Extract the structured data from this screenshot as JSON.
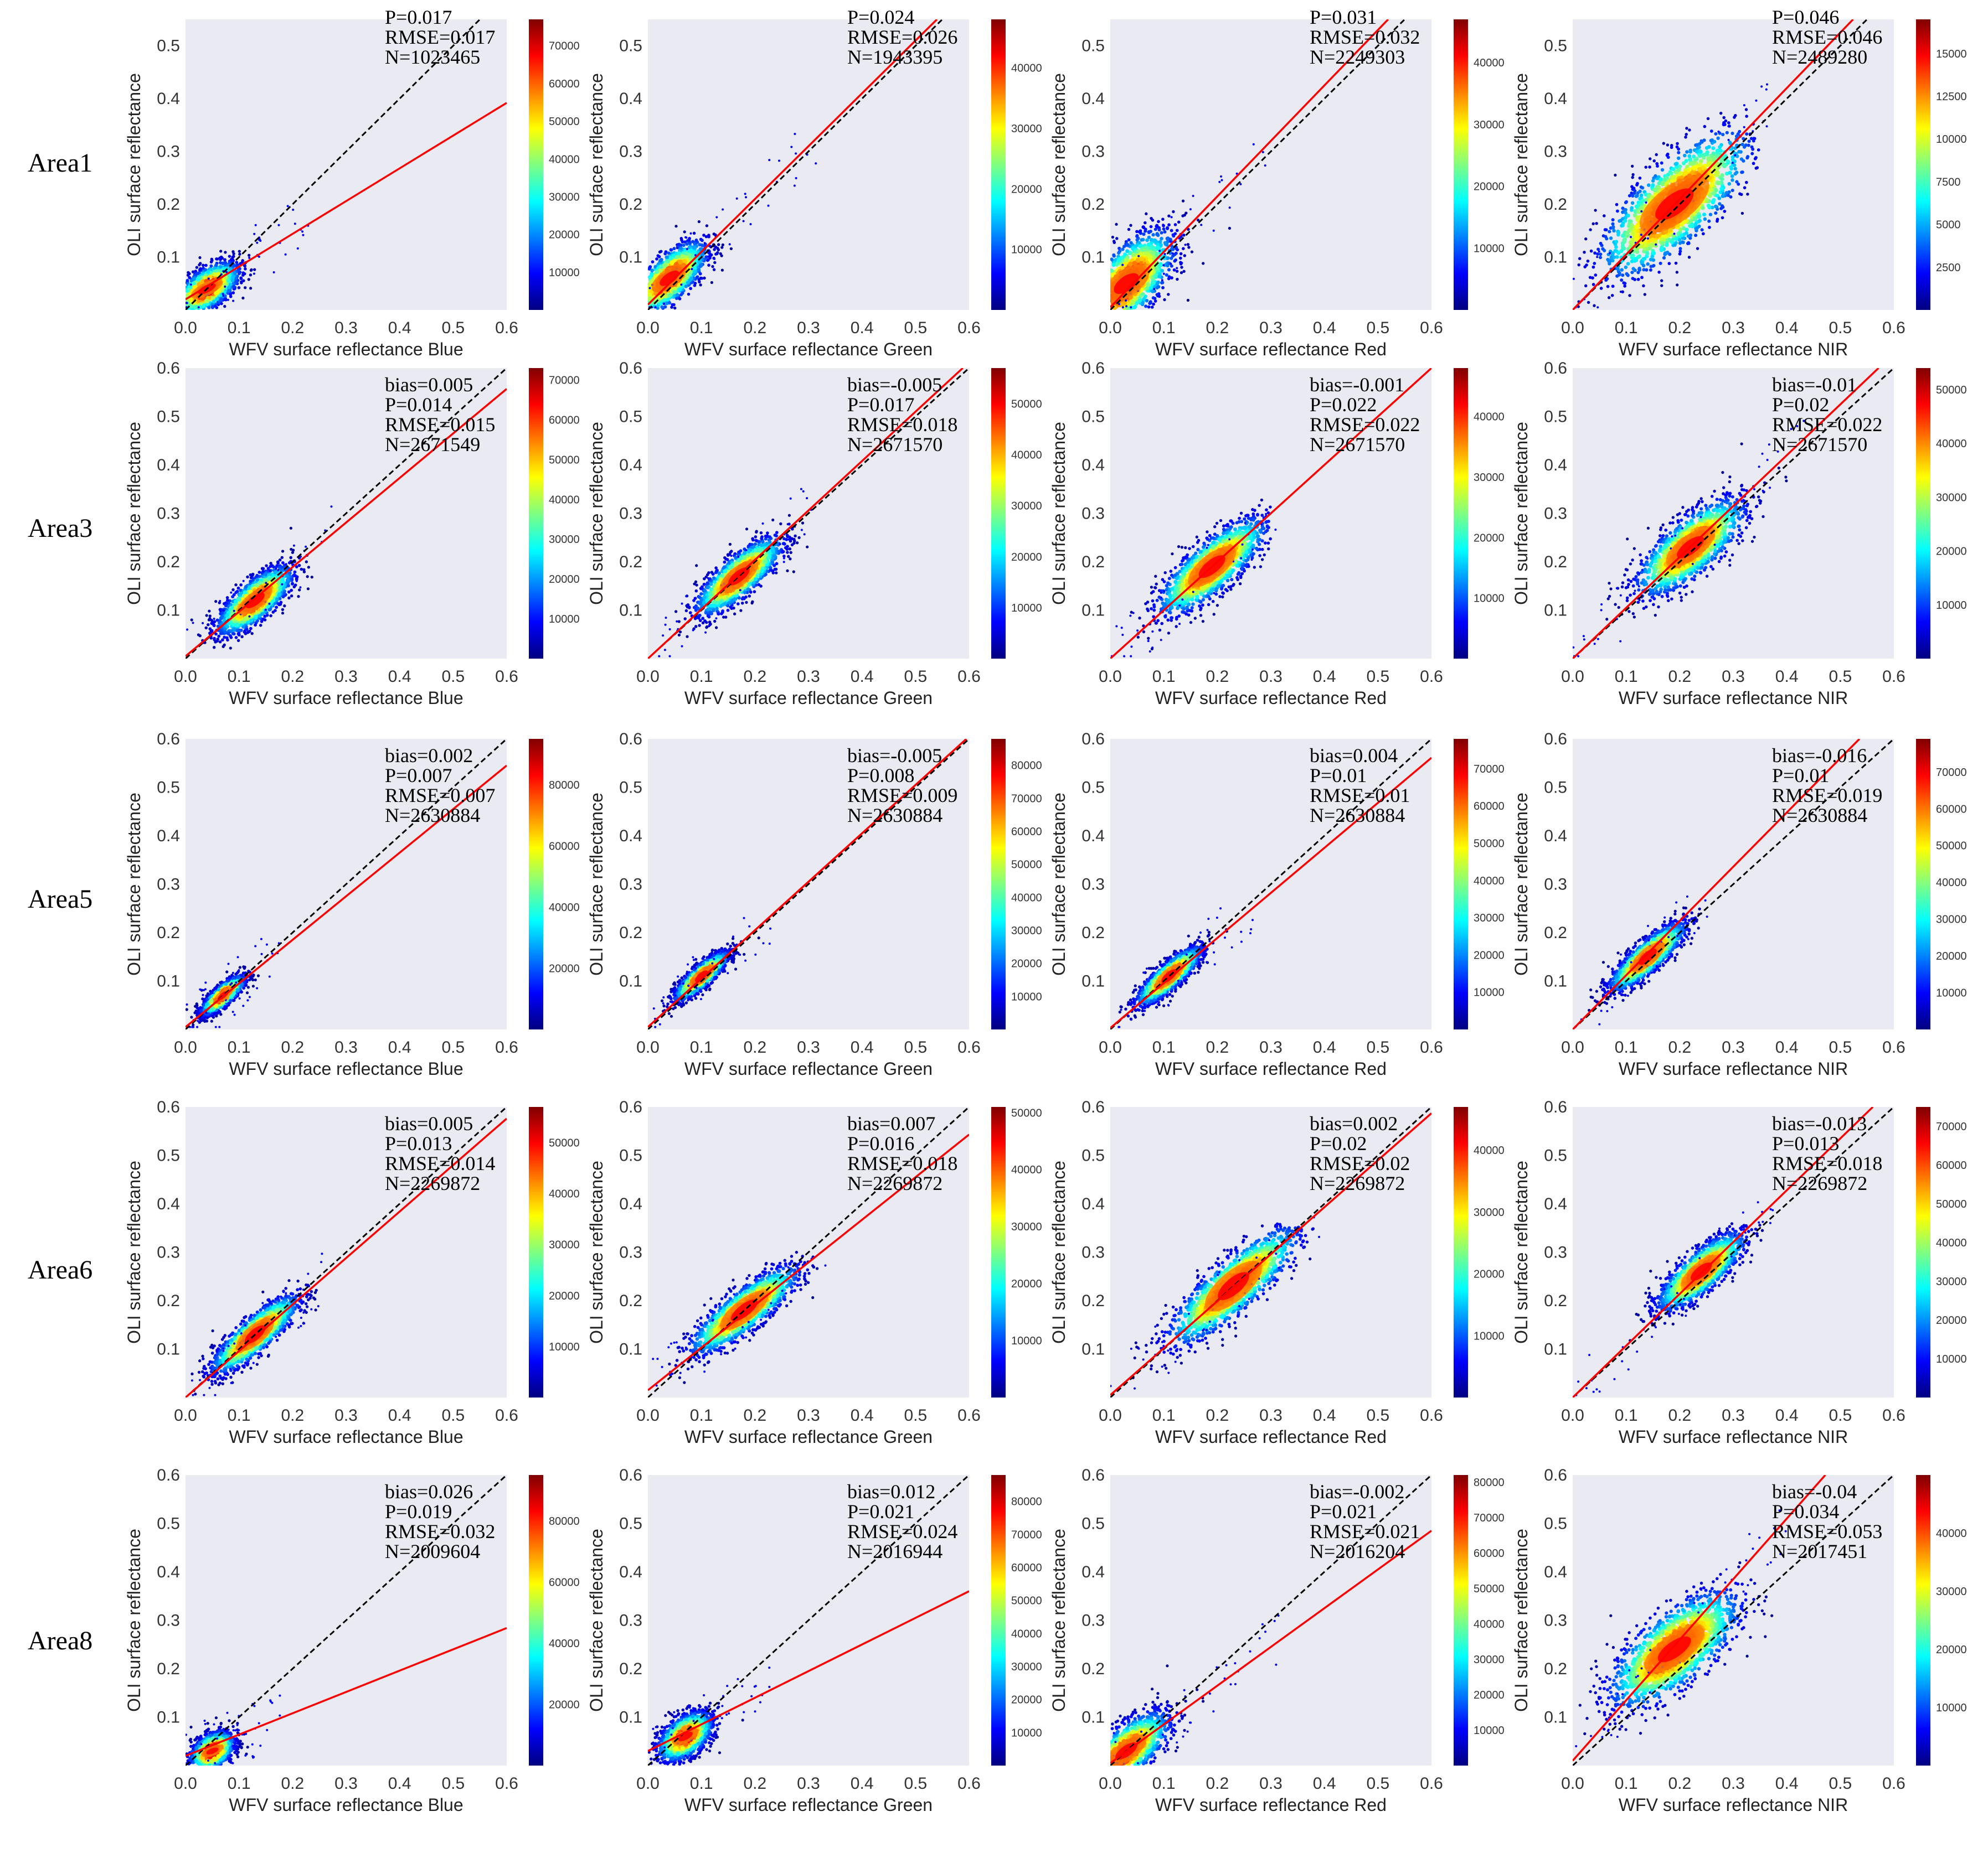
{
  "figure": {
    "y_axis_label": "OLI surface reflectance",
    "x_axis_label_prefix": "WFV surface reflectance",
    "bands": [
      "Blue",
      "Green",
      "Red",
      "NIR"
    ],
    "stat_prefixes": {
      "bias": "bias=",
      "p": "P=",
      "rmse": "RMSE=",
      "n": "N="
    },
    "colormap": [
      "#00007f",
      "#0000ff",
      "#0080ff",
      "#00ffff",
      "#80ff80",
      "#ffff00",
      "#ff8000",
      "#ff0000",
      "#7f0000"
    ],
    "colors": {
      "panel_bg": "#eaeaf2",
      "fit_line": "#ff0000",
      "one_to_one": "#000000"
    },
    "row_labels": [
      "Area1",
      "Area3",
      "Area5",
      "Area6",
      "Area8"
    ]
  },
  "chart_data": [
    {
      "type": "scatter",
      "row_label": "Area1",
      "band": "Blue",
      "bias": null,
      "p": "0.017",
      "rmse": "0.017",
      "n": "1023465",
      "xlim": [
        0,
        0.6
      ],
      "ylim": [
        0,
        0.55
      ],
      "xticks": [
        0.0,
        0.1,
        0.2,
        0.3,
        0.4,
        0.5,
        0.6
      ],
      "yticks": [
        0.1,
        0.2,
        0.3,
        0.4,
        0.5
      ],
      "fit": {
        "slope": 0.62,
        "intercept": 0.02
      },
      "density": {
        "cx": 0.04,
        "cy": 0.04,
        "sx": 0.03,
        "sy": 0.025,
        "rho": 0.6
      },
      "extent": {
        "xmax": 0.22,
        "ymax": 0.2
      },
      "colorbar": {
        "ticks": [
          10000,
          20000,
          30000,
          40000,
          50000,
          60000,
          70000
        ],
        "max": 77000
      }
    },
    {
      "type": "scatter",
      "row_label": "Area1",
      "band": "Green",
      "bias": null,
      "p": "0.024",
      "rmse": "0.026",
      "n": "1943395",
      "xlim": [
        0,
        0.6
      ],
      "ylim": [
        0,
        0.55
      ],
      "xticks": [
        0.0,
        0.1,
        0.2,
        0.3,
        0.4,
        0.5,
        0.6
      ],
      "yticks": [
        0.1,
        0.2,
        0.3,
        0.4,
        0.5
      ],
      "fit": {
        "slope": 1.0,
        "intercept": 0.01
      },
      "density": {
        "cx": 0.04,
        "cy": 0.06,
        "sx": 0.035,
        "sy": 0.035,
        "rho": 0.7
      },
      "extent": {
        "xmax": 0.3,
        "ymax": 0.3
      },
      "colorbar": {
        "ticks": [
          10000,
          20000,
          30000,
          40000
        ],
        "max": 48000
      }
    },
    {
      "type": "scatter",
      "row_label": "Area1",
      "band": "Red",
      "bias": null,
      "p": "0.031",
      "rmse": "0.032",
      "n": "2249303",
      "xlim": [
        0,
        0.6
      ],
      "ylim": [
        0,
        0.55
      ],
      "xticks": [
        0.0,
        0.1,
        0.2,
        0.3,
        0.4,
        0.5,
        0.6
      ],
      "yticks": [
        0.1,
        0.2,
        0.3,
        0.4,
        0.5
      ],
      "fit": {
        "slope": 1.05,
        "intercept": 0.005
      },
      "density": {
        "cx": 0.03,
        "cy": 0.05,
        "sx": 0.045,
        "sy": 0.05,
        "rho": 0.65
      },
      "extent": {
        "xmax": 0.3,
        "ymax": 0.33
      },
      "colorbar": {
        "ticks": [
          10000,
          20000,
          30000,
          40000
        ],
        "max": 47000
      }
    },
    {
      "type": "scatter",
      "row_label": "Area1",
      "band": "NIR",
      "bias": null,
      "p": "0.046",
      "rmse": "0.046",
      "n": "2489280",
      "xlim": [
        0,
        0.6
      ],
      "ylim": [
        0,
        0.55
      ],
      "xticks": [
        0.0,
        0.1,
        0.2,
        0.3,
        0.4,
        0.5,
        0.6
      ],
      "yticks": [
        0.1,
        0.2,
        0.3,
        0.4,
        0.5
      ],
      "fit": {
        "slope": 1.05,
        "intercept": 0.0
      },
      "density": {
        "cx": 0.19,
        "cy": 0.2,
        "sx": 0.07,
        "sy": 0.07,
        "rho": 0.75
      },
      "extent": {
        "xmax": 0.35,
        "ymax": 0.38
      },
      "colorbar": {
        "ticks": [
          2500,
          5000,
          7500,
          10000,
          12500,
          15000
        ],
        "max": 17000
      }
    },
    {
      "type": "scatter",
      "row_label": "Area3",
      "band": "Blue",
      "bias": "0.005",
      "p": "0.014",
      "rmse": "0.015",
      "n": "2671549",
      "xlim": [
        0,
        0.6
      ],
      "ylim": [
        0,
        0.6
      ],
      "xticks": [
        0.0,
        0.1,
        0.2,
        0.3,
        0.4,
        0.5,
        0.6
      ],
      "yticks": [
        0.1,
        0.2,
        0.3,
        0.4,
        0.5,
        0.6
      ],
      "fit": {
        "slope": 0.92,
        "intercept": 0.005
      },
      "density": {
        "cx": 0.13,
        "cy": 0.12,
        "sx": 0.035,
        "sy": 0.035,
        "rho": 0.75
      },
      "extent": {
        "xmax": 0.26,
        "ymax": 0.3
      },
      "colorbar": {
        "ticks": [
          10000,
          20000,
          30000,
          40000,
          50000,
          60000,
          70000
        ],
        "max": 73000
      }
    },
    {
      "type": "scatter",
      "row_label": "Area3",
      "band": "Green",
      "bias": "-0.005",
      "p": "0.017",
      "rmse": "0.018",
      "n": "2671570",
      "xlim": [
        0,
        0.6
      ],
      "ylim": [
        0,
        0.6
      ],
      "xticks": [
        0.0,
        0.1,
        0.2,
        0.3,
        0.4,
        0.5,
        0.6
      ],
      "yticks": [
        0.1,
        0.2,
        0.3,
        0.4,
        0.5,
        0.6
      ],
      "fit": {
        "slope": 1.02,
        "intercept": 0.0
      },
      "density": {
        "cx": 0.17,
        "cy": 0.17,
        "sx": 0.04,
        "sy": 0.04,
        "rho": 0.8
      },
      "extent": {
        "xmax": 0.3,
        "ymax": 0.36
      },
      "colorbar": {
        "ticks": [
          10000,
          20000,
          30000,
          40000,
          50000
        ],
        "max": 57000
      }
    },
    {
      "type": "scatter",
      "row_label": "Area3",
      "band": "Red",
      "bias": "-0.001",
      "p": "0.022",
      "rmse": "0.022",
      "n": "2671570",
      "xlim": [
        0,
        0.6
      ],
      "ylim": [
        0,
        0.6
      ],
      "xticks": [
        0.0,
        0.1,
        0.2,
        0.3,
        0.4,
        0.5,
        0.6
      ],
      "yticks": [
        0.1,
        0.2,
        0.3,
        0.4,
        0.5,
        0.6
      ],
      "fit": {
        "slope": 1.0,
        "intercept": 0.0
      },
      "density": {
        "cx": 0.19,
        "cy": 0.19,
        "sx": 0.05,
        "sy": 0.05,
        "rho": 0.8
      },
      "extent": {
        "xmax": 0.3,
        "ymax": 0.38
      },
      "colorbar": {
        "ticks": [
          10000,
          20000,
          30000,
          40000
        ],
        "max": 48000
      }
    },
    {
      "type": "scatter",
      "row_label": "Area3",
      "band": "NIR",
      "bias": "-0.01",
      "p": "0.02",
      "rmse": "0.022",
      "n": "2671570",
      "xlim": [
        0,
        0.6
      ],
      "ylim": [
        0,
        0.6
      ],
      "xticks": [
        0.0,
        0.1,
        0.2,
        0.3,
        0.4,
        0.5,
        0.6
      ],
      "yticks": [
        0.1,
        0.2,
        0.3,
        0.4,
        0.5,
        0.6
      ],
      "fit": {
        "slope": 1.05,
        "intercept": 0.0
      },
      "density": {
        "cx": 0.22,
        "cy": 0.23,
        "sx": 0.05,
        "sy": 0.05,
        "rho": 0.75
      },
      "extent": {
        "xmax": 0.42,
        "ymax": 0.45
      },
      "colorbar": {
        "ticks": [
          10000,
          20000,
          30000,
          40000,
          50000
        ],
        "max": 54000
      }
    },
    {
      "type": "scatter",
      "row_label": "Area5",
      "band": "Blue",
      "bias": "0.002",
      "p": "0.007",
      "rmse": "0.007",
      "n": "2630884",
      "xlim": [
        0,
        0.6
      ],
      "ylim": [
        0,
        0.6
      ],
      "xticks": [
        0.0,
        0.1,
        0.2,
        0.3,
        0.4,
        0.5,
        0.6
      ],
      "yticks": [
        0.1,
        0.2,
        0.3,
        0.4,
        0.5,
        0.6
      ],
      "fit": {
        "slope": 0.9,
        "intercept": 0.005
      },
      "density": {
        "cx": 0.07,
        "cy": 0.07,
        "sx": 0.02,
        "sy": 0.02,
        "rho": 0.8
      },
      "extent": {
        "xmax": 0.17,
        "ymax": 0.16
      },
      "colorbar": {
        "ticks": [
          20000,
          40000,
          60000,
          80000
        ],
        "max": 95000
      }
    },
    {
      "type": "scatter",
      "row_label": "Area5",
      "band": "Green",
      "bias": "-0.005",
      "p": "0.008",
      "rmse": "0.009",
      "n": "2630884",
      "xlim": [
        0,
        0.6
      ],
      "ylim": [
        0,
        0.6
      ],
      "xticks": [
        0.0,
        0.1,
        0.2,
        0.3,
        0.4,
        0.5,
        0.6
      ],
      "yticks": [
        0.1,
        0.2,
        0.3,
        0.4,
        0.5,
        0.6
      ],
      "fit": {
        "slope": 1.0,
        "intercept": 0.005
      },
      "density": {
        "cx": 0.1,
        "cy": 0.11,
        "sx": 0.025,
        "sy": 0.025,
        "rho": 0.85
      },
      "extent": {
        "xmax": 0.22,
        "ymax": 0.22
      },
      "colorbar": {
        "ticks": [
          10000,
          20000,
          30000,
          40000,
          50000,
          60000,
          70000,
          80000
        ],
        "max": 88000
      }
    },
    {
      "type": "scatter",
      "row_label": "Area5",
      "band": "Red",
      "bias": "0.004",
      "p": "0.01",
      "rmse": "0.01",
      "n": "2630884",
      "xlim": [
        0,
        0.6
      ],
      "ylim": [
        0,
        0.6
      ],
      "xticks": [
        0.0,
        0.1,
        0.2,
        0.3,
        0.4,
        0.5,
        0.6
      ],
      "yticks": [
        0.1,
        0.2,
        0.3,
        0.4,
        0.5,
        0.6
      ],
      "fit": {
        "slope": 0.93,
        "intercept": 0.003
      },
      "density": {
        "cx": 0.11,
        "cy": 0.11,
        "sx": 0.03,
        "sy": 0.03,
        "rho": 0.85
      },
      "extent": {
        "xmax": 0.26,
        "ymax": 0.26
      },
      "colorbar": {
        "ticks": [
          10000,
          20000,
          30000,
          40000,
          50000,
          60000,
          70000
        ],
        "max": 78000
      }
    },
    {
      "type": "scatter",
      "row_label": "Area5",
      "band": "NIR",
      "bias": "-0.016",
      "p": "0.01",
      "rmse": "0.019",
      "n": "2630884",
      "xlim": [
        0,
        0.6
      ],
      "ylim": [
        0,
        0.6
      ],
      "xticks": [
        0.0,
        0.1,
        0.2,
        0.3,
        0.4,
        0.5,
        0.6
      ],
      "yticks": [
        0.1,
        0.2,
        0.3,
        0.4,
        0.5,
        0.6
      ],
      "fit": {
        "slope": 1.12,
        "intercept": 0.0
      },
      "density": {
        "cx": 0.14,
        "cy": 0.15,
        "sx": 0.035,
        "sy": 0.035,
        "rho": 0.85
      },
      "extent": {
        "xmax": 0.24,
        "ymax": 0.28
      },
      "colorbar": {
        "ticks": [
          10000,
          20000,
          30000,
          40000,
          50000,
          60000,
          70000
        ],
        "max": 79000
      }
    },
    {
      "type": "scatter",
      "row_label": "Area6",
      "band": "Blue",
      "bias": "0.005",
      "p": "0.013",
      "rmse": "0.014",
      "n": "2269872",
      "xlim": [
        0,
        0.6
      ],
      "ylim": [
        0,
        0.6
      ],
      "xticks": [
        0.0,
        0.1,
        0.2,
        0.3,
        0.4,
        0.5,
        0.6
      ],
      "yticks": [
        0.1,
        0.2,
        0.3,
        0.4,
        0.5,
        0.6
      ],
      "fit": {
        "slope": 0.96,
        "intercept": 0.0
      },
      "density": {
        "cx": 0.13,
        "cy": 0.13,
        "sx": 0.04,
        "sy": 0.04,
        "rho": 0.85
      },
      "extent": {
        "xmax": 0.25,
        "ymax": 0.26
      },
      "colorbar": {
        "ticks": [
          10000,
          20000,
          30000,
          40000,
          50000
        ],
        "max": 57000
      }
    },
    {
      "type": "scatter",
      "row_label": "Area6",
      "band": "Green",
      "bias": "0.007",
      "p": "0.016",
      "rmse": "0.018",
      "n": "2269872",
      "xlim": [
        0,
        0.6
      ],
      "ylim": [
        0,
        0.6
      ],
      "xticks": [
        0.0,
        0.1,
        0.2,
        0.3,
        0.4,
        0.5,
        0.6
      ],
      "yticks": [
        0.1,
        0.2,
        0.3,
        0.4,
        0.5,
        0.6
      ],
      "fit": {
        "slope": 0.88,
        "intercept": 0.015
      },
      "density": {
        "cx": 0.18,
        "cy": 0.18,
        "sx": 0.05,
        "sy": 0.045,
        "rho": 0.85
      },
      "extent": {
        "xmax": 0.32,
        "ymax": 0.3
      },
      "colorbar": {
        "ticks": [
          10000,
          20000,
          30000,
          40000,
          50000
        ],
        "max": 51000
      }
    },
    {
      "type": "scatter",
      "row_label": "Area6",
      "band": "Red",
      "bias": "0.002",
      "p": "0.02",
      "rmse": "0.02",
      "n": "2269872",
      "xlim": [
        0,
        0.6
      ],
      "ylim": [
        0,
        0.6
      ],
      "xticks": [
        0.0,
        0.1,
        0.2,
        0.3,
        0.4,
        0.5,
        0.6
      ],
      "yticks": [
        0.1,
        0.2,
        0.3,
        0.4,
        0.5,
        0.6
      ],
      "fit": {
        "slope": 0.97,
        "intercept": 0.005
      },
      "density": {
        "cx": 0.23,
        "cy": 0.23,
        "sx": 0.06,
        "sy": 0.06,
        "rho": 0.85
      },
      "extent": {
        "xmax": 0.38,
        "ymax": 0.36
      },
      "colorbar": {
        "ticks": [
          10000,
          20000,
          30000,
          40000
        ],
        "max": 47000
      }
    },
    {
      "type": "scatter",
      "row_label": "Area6",
      "band": "NIR",
      "bias": "-0.013",
      "p": "0.013",
      "rmse": "0.018",
      "n": "2269872",
      "xlim": [
        0,
        0.6
      ],
      "ylim": [
        0,
        0.6
      ],
      "xticks": [
        0.0,
        0.1,
        0.2,
        0.3,
        0.4,
        0.5,
        0.6
      ],
      "yticks": [
        0.1,
        0.2,
        0.3,
        0.4,
        0.5,
        0.6
      ],
      "fit": {
        "slope": 1.07,
        "intercept": 0.0
      },
      "density": {
        "cx": 0.24,
        "cy": 0.26,
        "sx": 0.04,
        "sy": 0.04,
        "rho": 0.8
      },
      "extent": {
        "xmax": 0.36,
        "ymax": 0.36
      },
      "colorbar": {
        "ticks": [
          10000,
          20000,
          30000,
          40000,
          50000,
          60000,
          70000
        ],
        "max": 75000
      }
    },
    {
      "type": "scatter",
      "row_label": "Area8",
      "band": "Blue",
      "bias": "0.026",
      "p": "0.019",
      "rmse": "0.032",
      "n": "2009604",
      "xlim": [
        0,
        0.6
      ],
      "ylim": [
        0,
        0.6
      ],
      "xticks": [
        0.0,
        0.1,
        0.2,
        0.3,
        0.4,
        0.5,
        0.6
      ],
      "yticks": [
        0.1,
        0.2,
        0.3,
        0.4,
        0.5,
        0.6
      ],
      "fit": {
        "slope": 0.44,
        "intercept": 0.02
      },
      "density": {
        "cx": 0.05,
        "cy": 0.03,
        "sx": 0.02,
        "sy": 0.02,
        "rho": 0.4
      },
      "extent": {
        "xmax": 0.17,
        "ymax": 0.1
      },
      "colorbar": {
        "ticks": [
          20000,
          40000,
          60000,
          80000
        ],
        "max": 95000
      }
    },
    {
      "type": "scatter",
      "row_label": "Area8",
      "band": "Green",
      "bias": "0.012",
      "p": "0.021",
      "rmse": "0.024",
      "n": "2016944",
      "xlim": [
        0,
        0.6
      ],
      "ylim": [
        0,
        0.6
      ],
      "xticks": [
        0.0,
        0.1,
        0.2,
        0.3,
        0.4,
        0.5,
        0.6
      ],
      "yticks": [
        0.1,
        0.2,
        0.3,
        0.4,
        0.5,
        0.6
      ],
      "fit": {
        "slope": 0.55,
        "intercept": 0.03
      },
      "density": {
        "cx": 0.07,
        "cy": 0.06,
        "sx": 0.025,
        "sy": 0.025,
        "rho": 0.5
      },
      "extent": {
        "xmax": 0.22,
        "ymax": 0.16
      },
      "colorbar": {
        "ticks": [
          10000,
          20000,
          30000,
          40000,
          50000,
          60000,
          70000,
          80000
        ],
        "max": 88000
      }
    },
    {
      "type": "scatter",
      "row_label": "Area8",
      "band": "Red",
      "bias": "-0.002",
      "p": "0.021",
      "rmse": "0.021",
      "n": "2016204",
      "xlim": [
        0,
        0.6
      ],
      "ylim": [
        0,
        0.6
      ],
      "xticks": [
        0.0,
        0.1,
        0.2,
        0.3,
        0.4,
        0.5,
        0.6
      ],
      "yticks": [
        0.1,
        0.2,
        0.3,
        0.4,
        0.5,
        0.6
      ],
      "fit": {
        "slope": 0.8,
        "intercept": 0.005
      },
      "density": {
        "cx": 0.03,
        "cy": 0.03,
        "sx": 0.04,
        "sy": 0.04,
        "rho": 0.7
      },
      "extent": {
        "xmax": 0.3,
        "ymax": 0.25
      },
      "colorbar": {
        "ticks": [
          10000,
          20000,
          30000,
          40000,
          50000,
          60000,
          70000,
          80000
        ],
        "max": 82000
      }
    },
    {
      "type": "scatter",
      "row_label": "Area8",
      "band": "NIR",
      "bias": "-0.04",
      "p": "0.034",
      "rmse": "0.053",
      "n": "2017451",
      "xlim": [
        0,
        0.6
      ],
      "ylim": [
        0,
        0.6
      ],
      "xticks": [
        0.0,
        0.1,
        0.2,
        0.3,
        0.4,
        0.5,
        0.6
      ],
      "yticks": [
        0.1,
        0.2,
        0.3,
        0.4,
        0.5,
        0.6
      ],
      "fit": {
        "slope": 1.25,
        "intercept": 0.01
      },
      "density": {
        "cx": 0.19,
        "cy": 0.24,
        "sx": 0.06,
        "sy": 0.06,
        "rho": 0.7
      },
      "extent": {
        "xmax": 0.38,
        "ymax": 0.42
      },
      "colorbar": {
        "ticks": [
          10000,
          20000,
          30000,
          40000
        ],
        "max": 50000
      }
    }
  ]
}
